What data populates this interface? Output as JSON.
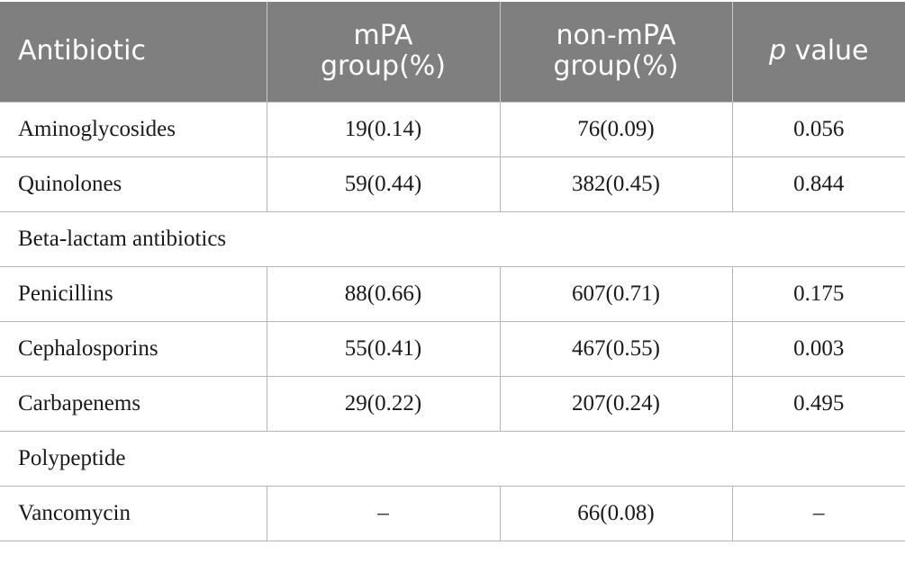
{
  "header": {
    "antibiotic": "Antibiotic",
    "mpa_line1": "mPA",
    "mpa_line2": "group(%)",
    "nonmpa_line1": "non-mPA",
    "nonmpa_line2": "group(%)",
    "p_italic": "p",
    "p_rest": " value"
  },
  "rows": [
    {
      "name": "Aminoglycosides",
      "mpa": "19(0.14)",
      "nonmpa": "76(0.09)",
      "p": "0.056"
    },
    {
      "name": "Quinolones",
      "mpa": "59(0.44)",
      "nonmpa": "382(0.45)",
      "p": "0.844"
    },
    {
      "section": "Beta-lactam antibiotics"
    },
    {
      "name": "Penicillins",
      "mpa": "88(0.66)",
      "nonmpa": "607(0.71)",
      "p": "0.175"
    },
    {
      "name": "Cephalosporins",
      "mpa": "55(0.41)",
      "nonmpa": "467(0.55)",
      "p": "0.003"
    },
    {
      "name": "Carbapenems",
      "mpa": "29(0.22)",
      "nonmpa": "207(0.24)",
      "p": "0.495"
    },
    {
      "section": "Polypeptide"
    },
    {
      "name": "Vancomycin",
      "mpa": "–",
      "nonmpa": "66(0.08)",
      "p": "–"
    }
  ]
}
